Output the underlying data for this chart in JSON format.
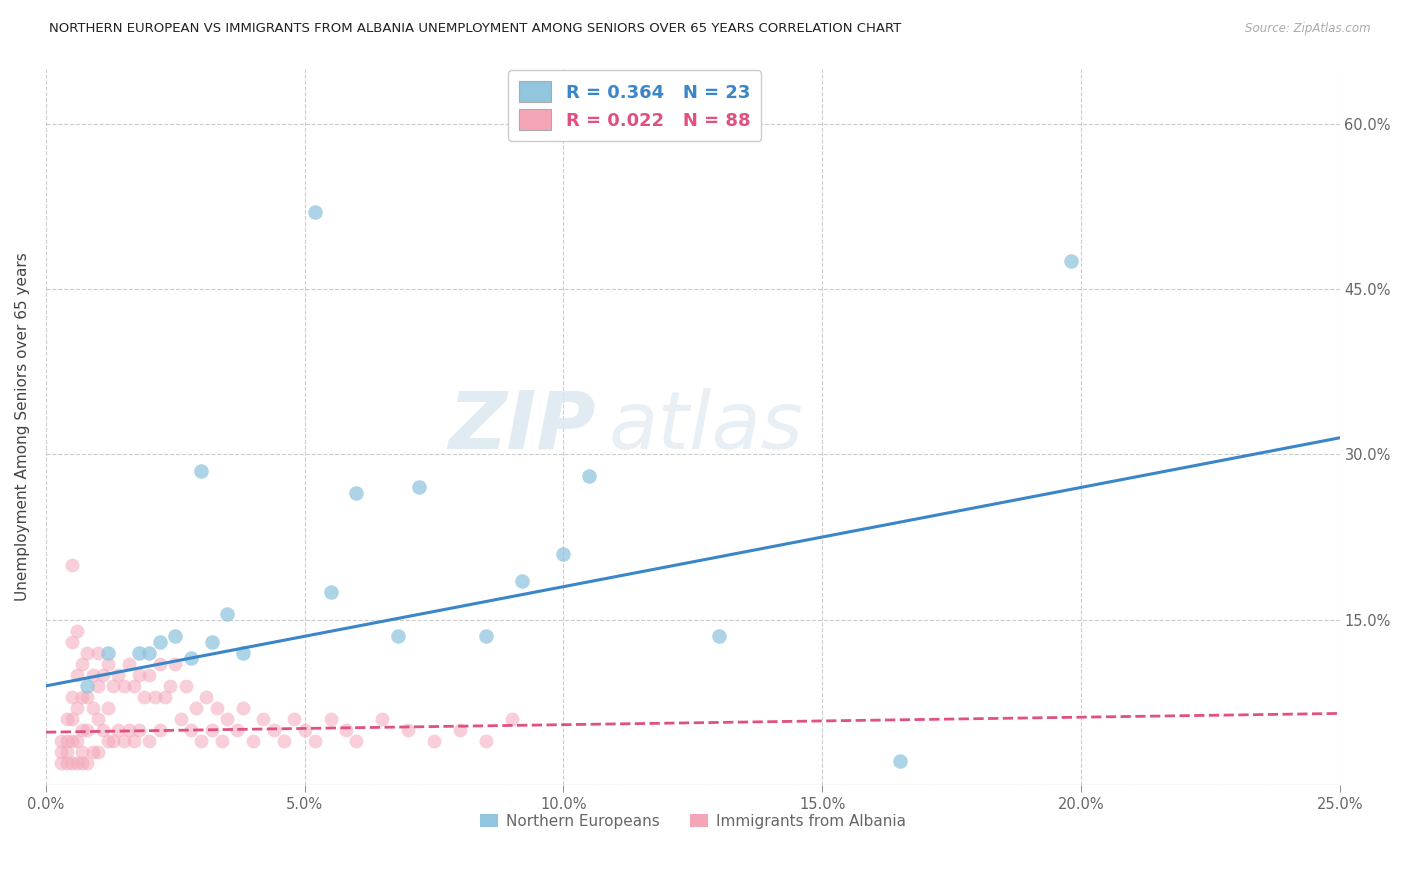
{
  "title": "NORTHERN EUROPEAN VS IMMIGRANTS FROM ALBANIA UNEMPLOYMENT AMONG SENIORS OVER 65 YEARS CORRELATION CHART",
  "source": "Source: ZipAtlas.com",
  "ylabel": "Unemployment Among Seniors over 65 years",
  "xlim": [
    0.0,
    0.25
  ],
  "ylim": [
    0.0,
    0.65
  ],
  "xticks": [
    0.0,
    0.05,
    0.1,
    0.15,
    0.2,
    0.25
  ],
  "yticks": [
    0.0,
    0.15,
    0.3,
    0.45,
    0.6
  ],
  "xtick_labels": [
    "0.0%",
    "5.0%",
    "10.0%",
    "15.0%",
    "20.0%",
    "25.0%"
  ],
  "ytick_labels_right": [
    "",
    "15.0%",
    "30.0%",
    "45.0%",
    "60.0%"
  ],
  "blue_R": "0.364",
  "blue_N": "23",
  "pink_R": "0.022",
  "pink_N": "88",
  "blue_scatter_x": [
    0.008,
    0.012,
    0.018,
    0.02,
    0.022,
    0.025,
    0.028,
    0.03,
    0.032,
    0.035,
    0.038,
    0.052,
    0.055,
    0.06,
    0.068,
    0.072,
    0.085,
    0.092,
    0.1,
    0.105,
    0.13,
    0.165,
    0.198
  ],
  "blue_scatter_y": [
    0.09,
    0.12,
    0.12,
    0.12,
    0.13,
    0.135,
    0.115,
    0.285,
    0.13,
    0.155,
    0.12,
    0.52,
    0.175,
    0.265,
    0.135,
    0.27,
    0.135,
    0.185,
    0.21,
    0.28,
    0.135,
    0.022,
    0.475
  ],
  "pink_scatter_x": [
    0.003,
    0.003,
    0.003,
    0.004,
    0.004,
    0.004,
    0.004,
    0.005,
    0.005,
    0.005,
    0.005,
    0.005,
    0.005,
    0.006,
    0.006,
    0.006,
    0.006,
    0.006,
    0.007,
    0.007,
    0.007,
    0.007,
    0.007,
    0.008,
    0.008,
    0.008,
    0.008,
    0.009,
    0.009,
    0.009,
    0.01,
    0.01,
    0.01,
    0.01,
    0.011,
    0.011,
    0.012,
    0.012,
    0.012,
    0.013,
    0.013,
    0.014,
    0.014,
    0.015,
    0.015,
    0.016,
    0.016,
    0.017,
    0.017,
    0.018,
    0.018,
    0.019,
    0.02,
    0.02,
    0.021,
    0.022,
    0.022,
    0.023,
    0.024,
    0.025,
    0.026,
    0.027,
    0.028,
    0.029,
    0.03,
    0.031,
    0.032,
    0.033,
    0.034,
    0.035,
    0.037,
    0.038,
    0.04,
    0.042,
    0.044,
    0.046,
    0.048,
    0.05,
    0.052,
    0.055,
    0.058,
    0.06,
    0.065,
    0.07,
    0.075,
    0.08,
    0.085,
    0.09
  ],
  "pink_scatter_y": [
    0.04,
    0.03,
    0.02,
    0.06,
    0.04,
    0.03,
    0.02,
    0.2,
    0.13,
    0.08,
    0.06,
    0.04,
    0.02,
    0.14,
    0.1,
    0.07,
    0.04,
    0.02,
    0.11,
    0.08,
    0.05,
    0.03,
    0.02,
    0.12,
    0.08,
    0.05,
    0.02,
    0.1,
    0.07,
    0.03,
    0.12,
    0.09,
    0.06,
    0.03,
    0.1,
    0.05,
    0.11,
    0.07,
    0.04,
    0.09,
    0.04,
    0.1,
    0.05,
    0.09,
    0.04,
    0.11,
    0.05,
    0.09,
    0.04,
    0.1,
    0.05,
    0.08,
    0.1,
    0.04,
    0.08,
    0.11,
    0.05,
    0.08,
    0.09,
    0.11,
    0.06,
    0.09,
    0.05,
    0.07,
    0.04,
    0.08,
    0.05,
    0.07,
    0.04,
    0.06,
    0.05,
    0.07,
    0.04,
    0.06,
    0.05,
    0.04,
    0.06,
    0.05,
    0.04,
    0.06,
    0.05,
    0.04,
    0.06,
    0.05,
    0.04,
    0.05,
    0.04,
    0.06
  ],
  "blue_line_x": [
    0.0,
    0.25
  ],
  "blue_line_y": [
    0.09,
    0.315
  ],
  "pink_line_x": [
    0.0,
    0.25
  ],
  "pink_line_y": [
    0.048,
    0.065
  ],
  "blue_color": "#92c5de",
  "pink_color": "#f4a6b8",
  "blue_line_color": "#3a86c8",
  "pink_line_color": "#e05080",
  "watermark_zip": "ZIP",
  "watermark_atlas": "atlas",
  "legend_label_blue": "R = 0.364   N = 23",
  "legend_label_pink": "R = 0.022   N = 88",
  "bottom_legend_blue": "Northern Europeans",
  "bottom_legend_pink": "Immigrants from Albania"
}
